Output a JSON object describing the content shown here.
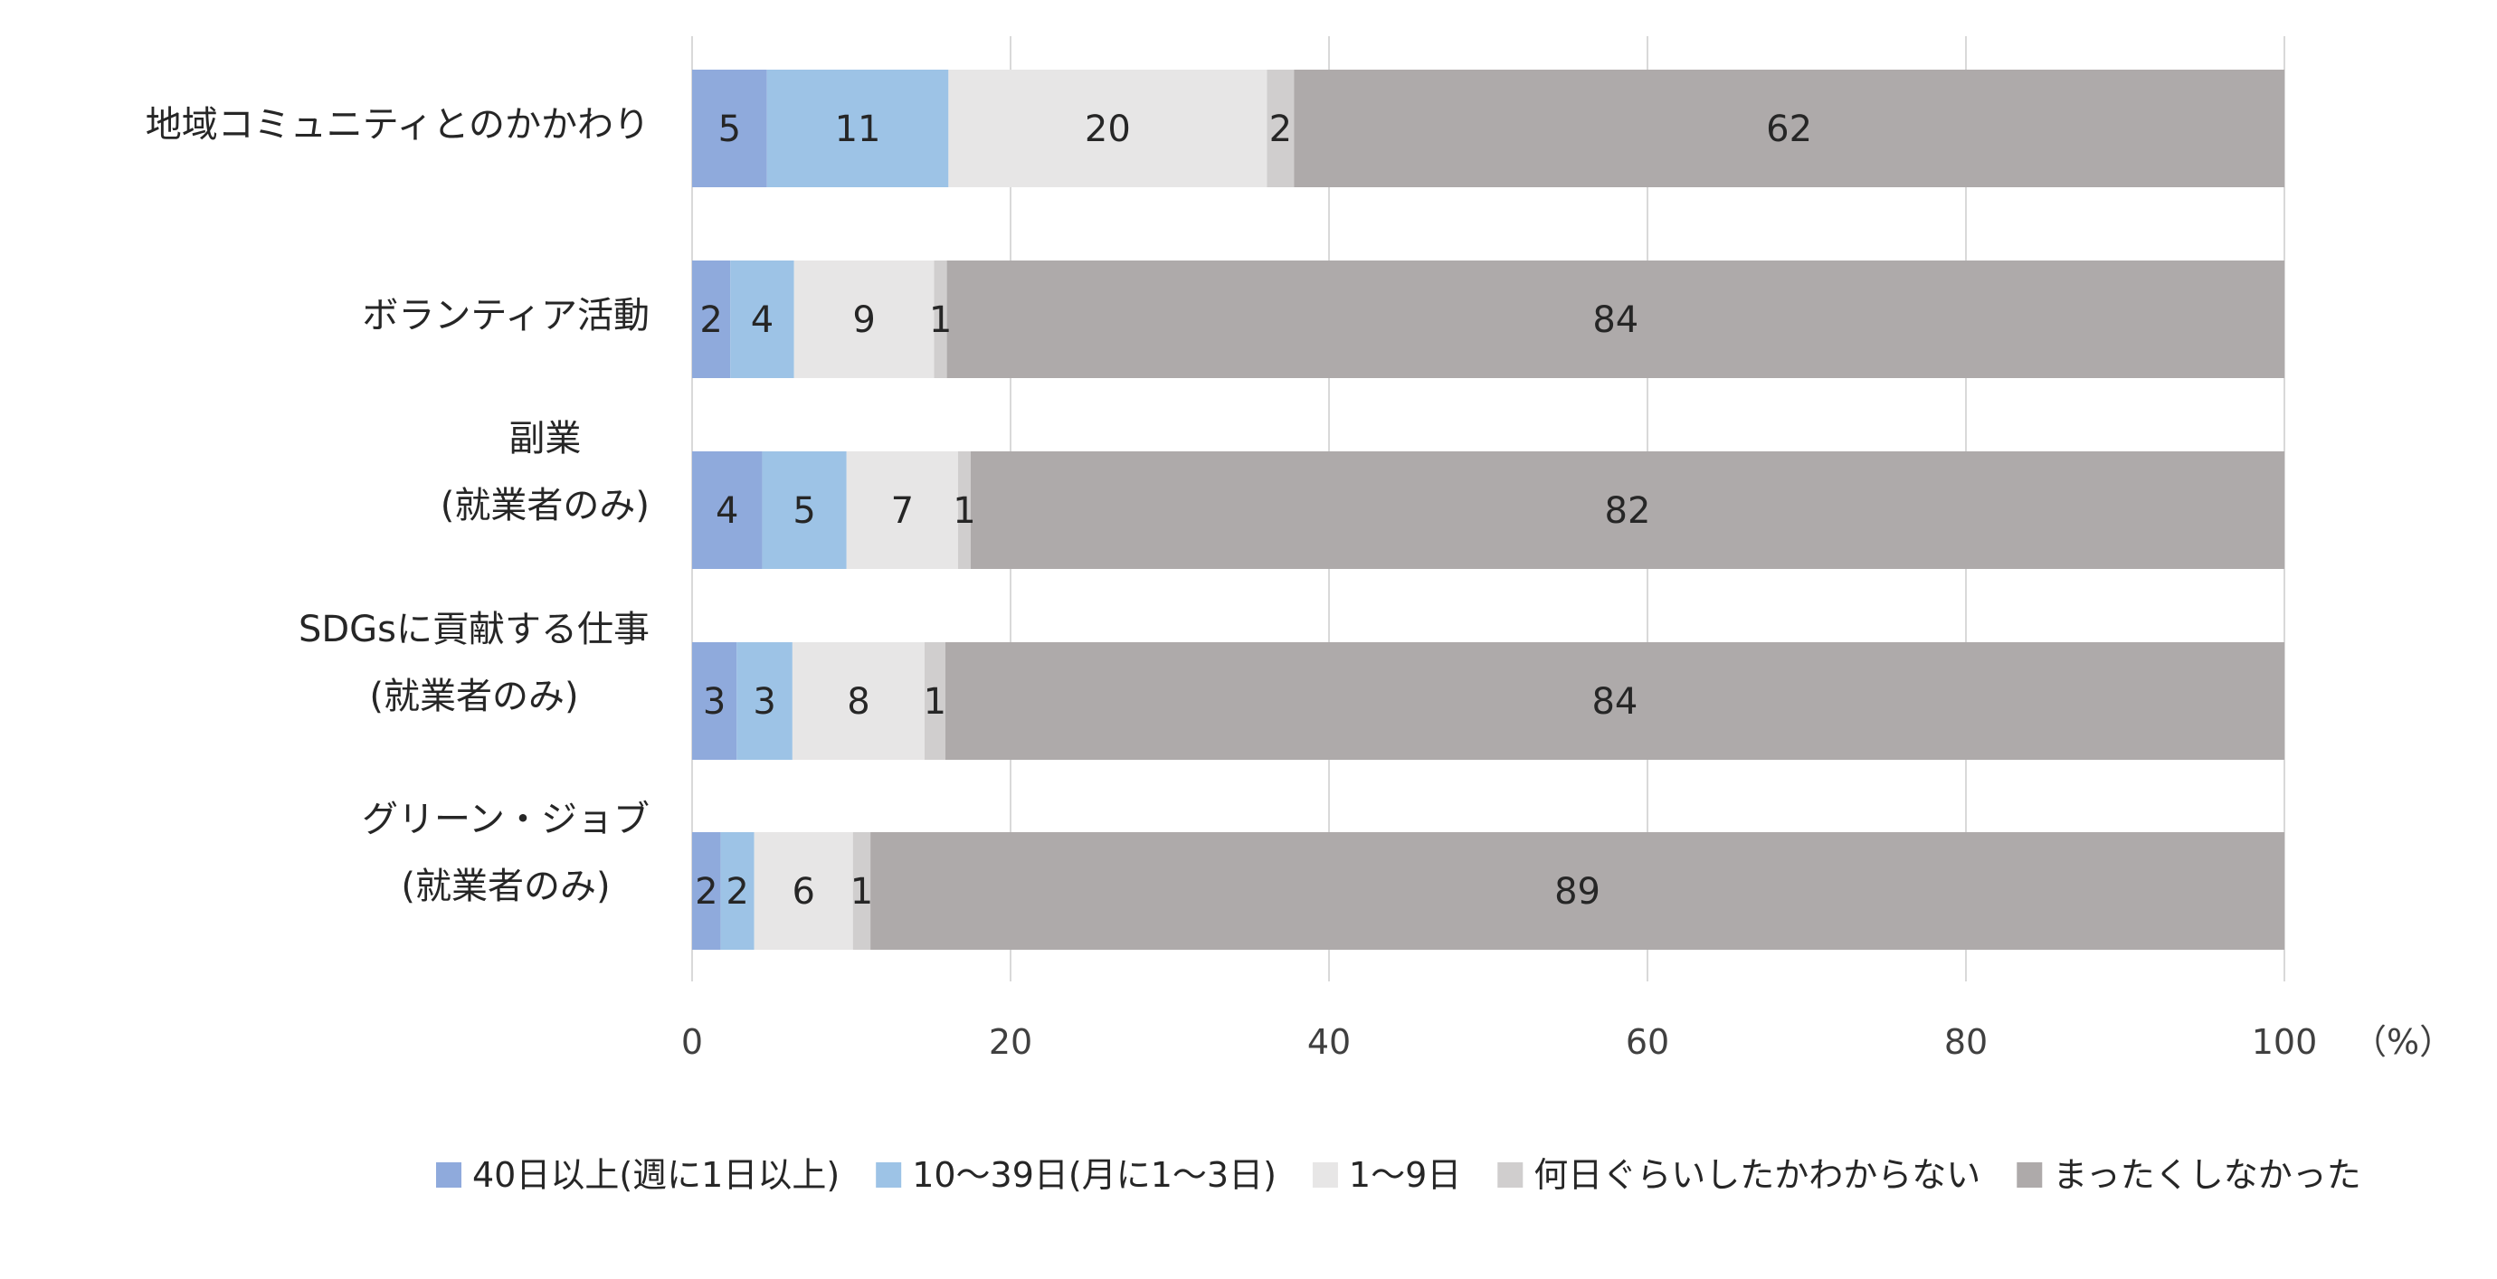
{
  "chart_data": {
    "type": "bar",
    "orientation": "horizontal",
    "stacked": true,
    "title": "",
    "xlabel": "",
    "ylabel": "",
    "unit_label": "（%）",
    "xlim": [
      0,
      100
    ],
    "x_ticks": [
      0,
      20,
      40,
      60,
      80,
      100
    ],
    "grid": true,
    "legend_position": "bottom",
    "categories": [
      [
        "地域コミュニティとのかかわり"
      ],
      [
        "ボランティア活動"
      ],
      [
        "副業",
        "(就業者のみ)"
      ],
      [
        "SDGsに貢献する仕事",
        "(就業者のみ)"
      ],
      [
        "グリーン・ジョブ",
        "(就業者のみ)"
      ]
    ],
    "series": [
      {
        "name": "40日以上(週に1日以上)",
        "color": "#8faadc",
        "values": [
          4.7,
          2.4,
          4.4,
          2.8,
          1.8
        ]
      },
      {
        "name": "10～39日(月に1～3日)",
        "color": "#9dc3e6",
        "values": [
          11.4,
          4.0,
          5.3,
          3.5,
          2.1
        ]
      },
      {
        "name": "1～9日",
        "color": "#e7e6e6",
        "values": [
          20.0,
          8.8,
          7.0,
          8.3,
          6.2
        ]
      },
      {
        "name": "何日ぐらいしたかわからない",
        "color": "#d0cece",
        "values": [
          1.7,
          0.8,
          0.8,
          1.3,
          1.1
        ]
      },
      {
        "name": "まったくしなかった",
        "color": "#aeaaaa",
        "values": [
          62.2,
          84.0,
          82.5,
          84.1,
          88.8
        ]
      }
    ],
    "data_labels": [
      [
        "5",
        "11",
        "20",
        "2",
        "62"
      ],
      [
        "2",
        "4",
        "9",
        "1",
        "84"
      ],
      [
        "4",
        "5",
        "7",
        "1",
        "82"
      ],
      [
        "3",
        "3",
        "8",
        "1",
        "84"
      ],
      [
        "2",
        "2",
        "6",
        "1",
        "89"
      ]
    ]
  }
}
